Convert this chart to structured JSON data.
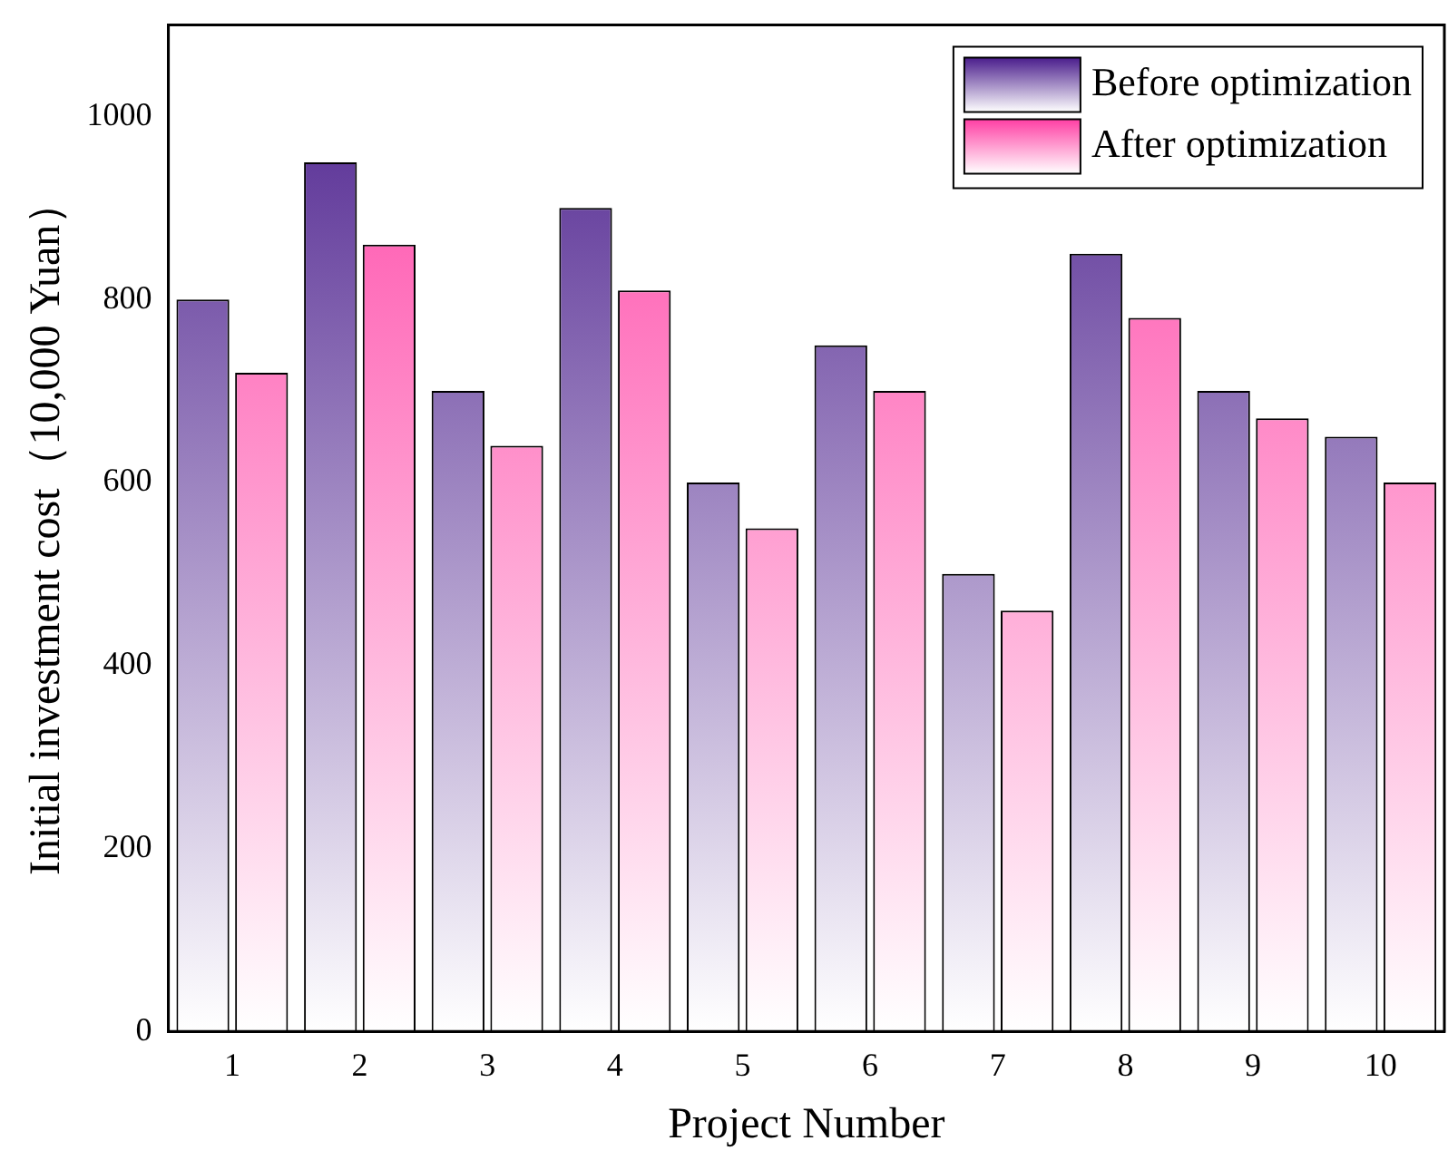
{
  "chart_data": {
    "type": "bar",
    "xlabel": "Project Number",
    "ylabel": "Initial investment cost（10,000 Yuan）",
    "categories": [
      "1",
      "2",
      "3",
      "4",
      "5",
      "6",
      "7",
      "8",
      "9",
      "10"
    ],
    "series": [
      {
        "name": "Before optimization",
        "color": "#4a1d8c",
        "values": [
          800,
          950,
          700,
          900,
          600,
          750,
          500,
          850,
          700,
          650
        ]
      },
      {
        "name": "After optimization",
        "color": "#ff3fa4",
        "values": [
          720,
          860,
          640,
          810,
          550,
          700,
          460,
          780,
          670,
          600
        ]
      }
    ],
    "ylim": [
      0,
      1100
    ],
    "yticks": [
      0,
      200,
      400,
      600,
      800,
      1000
    ],
    "grid": false,
    "legend": "top right"
  }
}
